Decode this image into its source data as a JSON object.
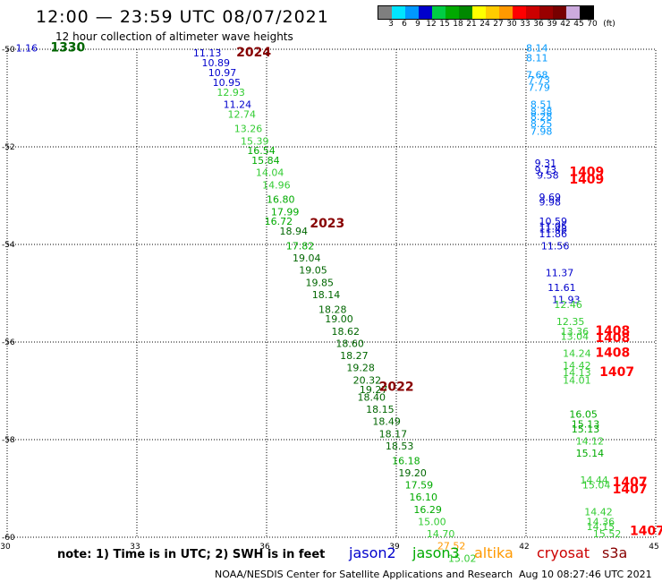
{
  "header": {
    "title": "12:00 — 23:59 UTC 08/07/2021",
    "subtitle": "12 hour collection of altimeter wave heights"
  },
  "colorbar": {
    "colors": [
      "#7f7f7f",
      "#00e5ff",
      "#0099ff",
      "#0000cc",
      "#00cc44",
      "#00aa00",
      "#008800",
      "#ffff00",
      "#ffcc00",
      "#ff9900",
      "#ff0000",
      "#cc0000",
      "#990000",
      "#770000",
      "#ccaadd",
      "#000000"
    ],
    "labels": [
      "3",
      "6",
      "9",
      "12",
      "15",
      "18",
      "21",
      "24",
      "27",
      "30",
      "33",
      "36",
      "39",
      "42",
      "45",
      "70",
      "(ft)"
    ]
  },
  "axes": {
    "x_ticks": [
      "30",
      "33",
      "36",
      "39",
      "42",
      "45"
    ],
    "y_ticks": [
      "-50",
      "-52",
      "-54",
      "-56",
      "-58",
      "-60"
    ],
    "grid": true
  },
  "chart_data": {
    "type": "scatter",
    "x_range": [
      30,
      45
    ],
    "y_range": [
      -60,
      -50
    ],
    "track_labels": [
      {
        "text": "1330",
        "lon": 31.0,
        "lat": -50.05,
        "color": "#006600"
      },
      {
        "text": "2024",
        "lon": 35.3,
        "lat": -50.15,
        "color": "#880000"
      },
      {
        "text": "2023",
        "lon": 37.0,
        "lat": -53.65,
        "color": "#880000"
      },
      {
        "text": "2022",
        "lon": 38.6,
        "lat": -57.0,
        "color": "#880000"
      },
      {
        "text": "1409",
        "lon": 43.0,
        "lat": -52.6,
        "color": "#ff0000"
      },
      {
        "text": "1409",
        "lon": 43.0,
        "lat": -52.75,
        "color": "#ff0000"
      },
      {
        "text": "1408",
        "lon": 43.6,
        "lat": -55.85,
        "color": "#ff0000"
      },
      {
        "text": "1408",
        "lon": 43.6,
        "lat": -56.0,
        "color": "#ff0000"
      },
      {
        "text": "1408",
        "lon": 43.6,
        "lat": -56.3,
        "color": "#ff0000"
      },
      {
        "text": "1407",
        "lon": 43.7,
        "lat": -56.7,
        "color": "#ff0000"
      },
      {
        "text": "1407",
        "lon": 44.0,
        "lat": -58.95,
        "color": "#ff0000"
      },
      {
        "text": "1407",
        "lon": 44.0,
        "lat": -59.1,
        "color": "#ff0000"
      },
      {
        "text": "1407",
        "lon": 44.4,
        "lat": -59.95,
        "color": "#ff0000"
      }
    ],
    "points": [
      {
        "v": "1.16",
        "lon": 30.2,
        "lat": -50.05,
        "color": "#0000cc"
      },
      {
        "v": "11.13",
        "lon": 34.3,
        "lat": -50.15,
        "color": "#0000cc"
      },
      {
        "v": "10.89",
        "lon": 34.5,
        "lat": -50.35,
        "color": "#0000cc"
      },
      {
        "v": "10.97",
        "lon": 34.65,
        "lat": -50.55,
        "color": "#0000cc"
      },
      {
        "v": "10.95",
        "lon": 34.75,
        "lat": -50.75,
        "color": "#0000cc"
      },
      {
        "v": "12.93",
        "lon": 34.85,
        "lat": -50.95,
        "color": "#33cc33"
      },
      {
        "v": "11.24",
        "lon": 35.0,
        "lat": -51.2,
        "color": "#0000cc"
      },
      {
        "v": "12.74",
        "lon": 35.1,
        "lat": -51.4,
        "color": "#33cc33"
      },
      {
        "v": "13.26",
        "lon": 35.25,
        "lat": -51.7,
        "color": "#33cc33"
      },
      {
        "v": "15.39",
        "lon": 35.4,
        "lat": -51.95,
        "color": "#33cc33"
      },
      {
        "v": "16.54",
        "lon": 35.55,
        "lat": -52.15,
        "color": "#00aa00"
      },
      {
        "v": "15.84",
        "lon": 35.65,
        "lat": -52.35,
        "color": "#00aa00"
      },
      {
        "v": "14.04",
        "lon": 35.75,
        "lat": -52.6,
        "color": "#33cc33"
      },
      {
        "v": "14.96",
        "lon": 35.9,
        "lat": -52.85,
        "color": "#33cc33"
      },
      {
        "v": "16.80",
        "lon": 36.0,
        "lat": -53.15,
        "color": "#00aa00"
      },
      {
        "v": "17.99",
        "lon": 36.1,
        "lat": -53.4,
        "color": "#00aa00"
      },
      {
        "v": "16.72",
        "lon": 35.95,
        "lat": -53.6,
        "color": "#00aa00"
      },
      {
        "v": "18.94",
        "lon": 36.3,
        "lat": -53.8,
        "color": "#006600"
      },
      {
        "v": "17.82",
        "lon": 36.45,
        "lat": -54.1,
        "color": "#00aa00"
      },
      {
        "v": "19.04",
        "lon": 36.6,
        "lat": -54.35,
        "color": "#006600"
      },
      {
        "v": "19.05",
        "lon": 36.75,
        "lat": -54.6,
        "color": "#006600"
      },
      {
        "v": "19.85",
        "lon": 36.9,
        "lat": -54.85,
        "color": "#006600"
      },
      {
        "v": "18.14",
        "lon": 37.05,
        "lat": -55.1,
        "color": "#006600"
      },
      {
        "v": "18.28",
        "lon": 37.2,
        "lat": -55.4,
        "color": "#006600"
      },
      {
        "v": "19.00",
        "lon": 37.35,
        "lat": -55.6,
        "color": "#006600"
      },
      {
        "v": "18.62",
        "lon": 37.5,
        "lat": -55.85,
        "color": "#006600"
      },
      {
        "v": "18.60",
        "lon": 37.6,
        "lat": -56.1,
        "color": "#006600"
      },
      {
        "v": "18.27",
        "lon": 37.7,
        "lat": -56.35,
        "color": "#006600"
      },
      {
        "v": "19.28",
        "lon": 37.85,
        "lat": -56.6,
        "color": "#006600"
      },
      {
        "v": "20.32",
        "lon": 38.0,
        "lat": -56.85,
        "color": "#006600"
      },
      {
        "v": "19.27",
        "lon": 38.15,
        "lat": -57.05,
        "color": "#006600"
      },
      {
        "v": "18.40",
        "lon": 38.1,
        "lat": -57.2,
        "color": "#006600"
      },
      {
        "v": "18.15",
        "lon": 38.3,
        "lat": -57.45,
        "color": "#006600"
      },
      {
        "v": "18.49",
        "lon": 38.45,
        "lat": -57.7,
        "color": "#006600"
      },
      {
        "v": "18.17",
        "lon": 38.6,
        "lat": -57.95,
        "color": "#006600"
      },
      {
        "v": "18.53",
        "lon": 38.75,
        "lat": -58.2,
        "color": "#006600"
      },
      {
        "v": "16.18",
        "lon": 38.9,
        "lat": -58.5,
        "color": "#00aa00"
      },
      {
        "v": "19.20",
        "lon": 39.05,
        "lat": -58.75,
        "color": "#006600"
      },
      {
        "v": "17.59",
        "lon": 39.2,
        "lat": -59.0,
        "color": "#00aa00"
      },
      {
        "v": "16.10",
        "lon": 39.3,
        "lat": -59.25,
        "color": "#00aa00"
      },
      {
        "v": "16.29",
        "lon": 39.4,
        "lat": -59.5,
        "color": "#00aa00"
      },
      {
        "v": "15.00",
        "lon": 39.5,
        "lat": -59.75,
        "color": "#33cc33"
      },
      {
        "v": "14.70",
        "lon": 39.7,
        "lat": -60.0,
        "color": "#33cc33"
      },
      {
        "v": "27.52",
        "lon": 39.95,
        "lat": -60.25,
        "color": "#ff9900"
      },
      {
        "v": "15.02",
        "lon": 40.2,
        "lat": -60.5,
        "color": "#33cc33"
      },
      {
        "v": "8.14",
        "lon": 42.0,
        "lat": -50.05,
        "color": "#0099ff"
      },
      {
        "v": "8.11",
        "lon": 42.0,
        "lat": -50.25,
        "color": "#0099ff"
      },
      {
        "v": "7.68",
        "lon": 42.0,
        "lat": -50.6,
        "color": "#0099ff"
      },
      {
        "v": "7.73",
        "lon": 42.05,
        "lat": -50.7,
        "color": "#0099ff"
      },
      {
        "v": "7.79",
        "lon": 42.05,
        "lat": -50.85,
        "color": "#0099ff"
      },
      {
        "v": "8.51",
        "lon": 42.1,
        "lat": -51.2,
        "color": "#0099ff"
      },
      {
        "v": "8.38",
        "lon": 42.1,
        "lat": -51.35,
        "color": "#0099ff"
      },
      {
        "v": "8.28",
        "lon": 42.1,
        "lat": -51.45,
        "color": "#0099ff"
      },
      {
        "v": "8.25",
        "lon": 42.1,
        "lat": -51.6,
        "color": "#0099ff"
      },
      {
        "v": "7.98",
        "lon": 42.1,
        "lat": -51.75,
        "color": "#0099ff"
      },
      {
        "v": "9.31",
        "lon": 42.2,
        "lat": -52.4,
        "color": "#0000cc"
      },
      {
        "v": "9.73",
        "lon": 42.2,
        "lat": -52.55,
        "color": "#0000cc"
      },
      {
        "v": "9.58",
        "lon": 42.25,
        "lat": -52.65,
        "color": "#0000cc"
      },
      {
        "v": "9.69",
        "lon": 42.3,
        "lat": -53.1,
        "color": "#0000cc"
      },
      {
        "v": "9.98",
        "lon": 42.3,
        "lat": -53.2,
        "color": "#0000cc"
      },
      {
        "v": "10.59",
        "lon": 42.3,
        "lat": -53.6,
        "color": "#0000cc"
      },
      {
        "v": "11.05",
        "lon": 42.3,
        "lat": -53.7,
        "color": "#0000cc"
      },
      {
        "v": "11.48",
        "lon": 42.3,
        "lat": -53.75,
        "color": "#0000cc"
      },
      {
        "v": "11.86",
        "lon": 42.3,
        "lat": -53.85,
        "color": "#0000cc"
      },
      {
        "v": "11.56",
        "lon": 42.35,
        "lat": -54.1,
        "color": "#0000cc"
      },
      {
        "v": "11.37",
        "lon": 42.45,
        "lat": -54.65,
        "color": "#0000cc"
      },
      {
        "v": "11.61",
        "lon": 42.5,
        "lat": -54.95,
        "color": "#0000cc"
      },
      {
        "v": "11.93",
        "lon": 42.6,
        "lat": -55.2,
        "color": "#0000cc"
      },
      {
        "v": "12.46",
        "lon": 42.65,
        "lat": -55.3,
        "color": "#33cc33"
      },
      {
        "v": "12.35",
        "lon": 42.7,
        "lat": -55.65,
        "color": "#33cc33"
      },
      {
        "v": "13.36",
        "lon": 42.8,
        "lat": -55.85,
        "color": "#33cc33"
      },
      {
        "v": "13.04",
        "lon": 42.8,
        "lat": -55.95,
        "color": "#33cc33"
      },
      {
        "v": "14.24",
        "lon": 42.85,
        "lat": -56.3,
        "color": "#33cc33"
      },
      {
        "v": "14.42",
        "lon": 42.85,
        "lat": -56.55,
        "color": "#33cc33"
      },
      {
        "v": "14.13",
        "lon": 42.85,
        "lat": -56.7,
        "color": "#33cc33"
      },
      {
        "v": "14.01",
        "lon": 42.85,
        "lat": -56.85,
        "color": "#33cc33"
      },
      {
        "v": "16.05",
        "lon": 43.0,
        "lat": -57.55,
        "color": "#00aa00"
      },
      {
        "v": "15.13",
        "lon": 43.05,
        "lat": -57.75,
        "color": "#00aa00"
      },
      {
        "v": "15.13",
        "lon": 43.05,
        "lat": -57.85,
        "color": "#00aa00"
      },
      {
        "v": "14.12",
        "lon": 43.15,
        "lat": -58.1,
        "color": "#33cc33"
      },
      {
        "v": "15.14",
        "lon": 43.15,
        "lat": -58.35,
        "color": "#00aa00"
      },
      {
        "v": "14.44",
        "lon": 43.25,
        "lat": -58.9,
        "color": "#33cc33"
      },
      {
        "v": "15.04",
        "lon": 43.3,
        "lat": -59.0,
        "color": "#33cc33"
      },
      {
        "v": "14.42",
        "lon": 43.35,
        "lat": -59.55,
        "color": "#33cc33"
      },
      {
        "v": "14.36",
        "lon": 43.4,
        "lat": -59.75,
        "color": "#33cc33"
      },
      {
        "v": "14.15",
        "lon": 43.4,
        "lat": -59.85,
        "color": "#33cc33"
      },
      {
        "v": "15.52",
        "lon": 43.55,
        "lat": -60.0,
        "color": "#33cc33"
      }
    ]
  },
  "note": "note:  1) Time is in UTC; 2) SWH is in feet",
  "legend": [
    {
      "name": "jason2",
      "color": "#0000cc"
    },
    {
      "name": "jason3",
      "color": "#00aa00"
    },
    {
      "name": "altika",
      "color": "#ff9900"
    },
    {
      "name": "cryosat",
      "color": "#cc0000"
    },
    {
      "name": "s3a",
      "color": "#880000"
    }
  ],
  "footer": {
    "org": "NOAA/NESDIS Center for Satellite Applications and Research",
    "date": "Aug 10 08:27:46 UTC 2021"
  }
}
